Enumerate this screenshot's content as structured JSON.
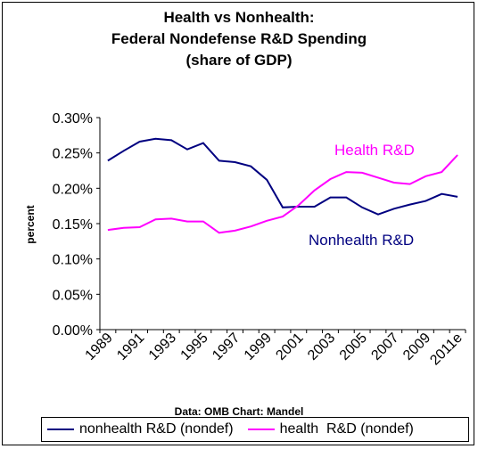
{
  "title_lines": [
    "Health vs Nonhealth:",
    "Federal Nondefense R&D Spending",
    "(share of GDP)"
  ],
  "ylabel": "percent",
  "source": "Data: OMB  Chart: Mandel",
  "colors": {
    "nonhealth": "#000080",
    "health": "#FF00FF"
  },
  "chart_data": {
    "type": "line",
    "title": "Health vs Nonhealth: Federal Nondefense R&D Spending (share of GDP)",
    "xlabel": "",
    "ylabel": "percent",
    "ylim": [
      0,
      0.3
    ],
    "y_ticks": [
      "0.00%",
      "0.05%",
      "0.10%",
      "0.15%",
      "0.20%",
      "0.25%",
      "0.30%"
    ],
    "x_tick_labels": [
      "1989",
      "1991",
      "1993",
      "1995",
      "1997",
      "1999",
      "2001",
      "2003",
      "2005",
      "2007",
      "2009",
      "2011e"
    ],
    "x": [
      "1989",
      "1990",
      "1991",
      "1992",
      "1993",
      "1994",
      "1995",
      "1996",
      "1997",
      "1998",
      "1999",
      "2000",
      "2001",
      "2002",
      "2003",
      "2004",
      "2005",
      "2006",
      "2007",
      "2008",
      "2009",
      "2010",
      "2011e"
    ],
    "legend_position": "bottom",
    "series": [
      {
        "name": "nonhealth R&D (nondef)",
        "label": "Nonhealth R&D",
        "color": "#000080",
        "values": [
          0.239,
          0.253,
          0.266,
          0.27,
          0.268,
          0.255,
          0.264,
          0.239,
          0.237,
          0.231,
          0.212,
          0.173,
          0.174,
          0.174,
          0.187,
          0.187,
          0.173,
          0.163,
          0.171,
          0.177,
          0.182,
          0.192,
          0.188
        ]
      },
      {
        "name": "health  R&D (nondef)",
        "label": "Health R&D",
        "color": "#FF00FF",
        "values": [
          0.141,
          0.144,
          0.145,
          0.156,
          0.157,
          0.153,
          0.153,
          0.137,
          0.14,
          0.146,
          0.154,
          0.16,
          0.176,
          0.197,
          0.213,
          0.223,
          0.222,
          0.215,
          0.208,
          0.206,
          0.217,
          0.223,
          0.247
        ]
      }
    ]
  }
}
